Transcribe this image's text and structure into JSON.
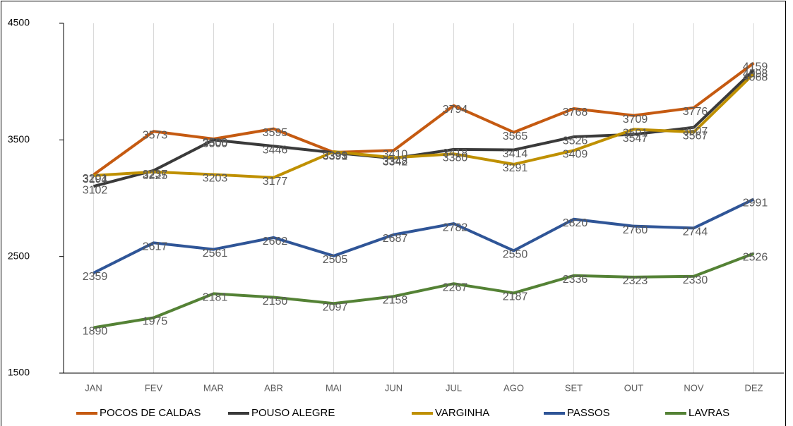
{
  "chart_data": {
    "type": "line",
    "categories": [
      "JAN",
      "FEV",
      "MAR",
      "ABR",
      "MAI",
      "JUN",
      "JUL",
      "AGO",
      "SET",
      "OUT",
      "NOV",
      "DEZ"
    ],
    "series": [
      {
        "name": "POCOS DE CALDAS",
        "color": "#c55a11",
        "values": [
          3201,
          3573,
          3508,
          3595,
          3393,
          3410,
          3794,
          3565,
          3768,
          3709,
          3776,
          4159
        ]
      },
      {
        "name": "POUSO ALEGRE",
        "color": "#3a3a3a",
        "values": [
          3102,
          3237,
          3500,
          3446,
          3391,
          3342,
          3418,
          3414,
          3526,
          3547,
          3607,
          4098
        ]
      },
      {
        "name": "VARGINHA",
        "color": "#bf9000",
        "values": [
          3194,
          3225,
          3203,
          3177,
          3399,
          3348,
          3380,
          3291,
          3409,
          3591,
          3567,
          4068
        ]
      },
      {
        "name": "PASSOS",
        "color": "#2f5597",
        "values": [
          2359,
          2617,
          2561,
          2662,
          2505,
          2687,
          2782,
          2550,
          2820,
          2760,
          2744,
          2991
        ]
      },
      {
        "name": "LAVRAS",
        "color": "#548235",
        "values": [
          1890,
          1975,
          2181,
          2150,
          2097,
          2158,
          2267,
          2187,
          2336,
          2323,
          2330,
          2526
        ]
      }
    ],
    "ylim": [
      1500,
      4500
    ],
    "yticks": [
      1500,
      2500,
      3500,
      4500
    ],
    "grid": true
  }
}
